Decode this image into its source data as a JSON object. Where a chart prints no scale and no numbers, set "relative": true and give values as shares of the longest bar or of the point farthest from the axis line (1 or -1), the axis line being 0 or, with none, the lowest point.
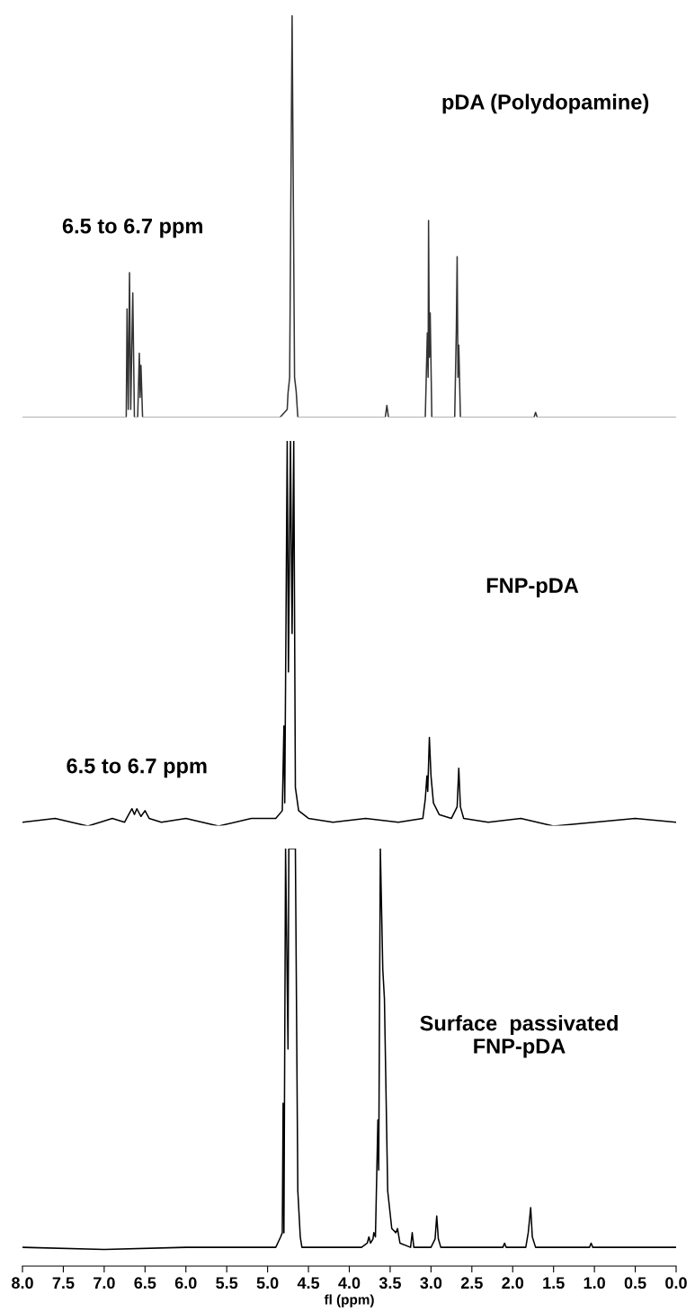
{
  "chart_data": [
    {
      "type": "line",
      "relative": true,
      "xlim": [
        8.0,
        0.0
      ],
      "tick_labels": false,
      "annotations": [
        {
          "text": "6.5 to 6.7 ppm",
          "x": 6.65,
          "y": 0.36
        }
      ],
      "series": [
        {
          "name": "pDA (Polydopamine)",
          "color": "#333333",
          "x": [
            8.0,
            6.76,
            6.73,
            6.72,
            6.705,
            6.69,
            6.675,
            6.65,
            6.63,
            6.59,
            6.57,
            6.56,
            6.55,
            6.53,
            4.85,
            4.76,
            4.75,
            4.73,
            4.7,
            4.67,
            4.65,
            4.63,
            3.56,
            3.54,
            3.52,
            3.07,
            3.045,
            3.035,
            3.03,
            3.02,
            3.01,
            2.99,
            2.71,
            2.69,
            2.68,
            2.67,
            2.66,
            2.64,
            1.74,
            1.72,
            1.7,
            0.0
          ],
          "values": [
            0,
            0,
            0,
            0.27,
            0.02,
            0.36,
            0.02,
            0.31,
            0,
            0,
            0.16,
            0.05,
            0.13,
            0,
            0,
            0.02,
            0.06,
            0.1,
            1,
            0.1,
            0.065,
            0,
            0,
            0.03,
            0,
            0,
            0.21,
            0.1,
            0.49,
            0.15,
            0.26,
            0,
            0,
            0.22,
            0.4,
            0.1,
            0.18,
            0,
            0,
            0.013,
            0,
            0
          ]
        }
      ]
    },
    {
      "type": "line",
      "relative": true,
      "xlim": [
        8.0,
        0.0
      ],
      "tick_labels": false,
      "annotations": [
        {
          "text": "6.5 to 6.7 ppm",
          "x": 6.6,
          "y": 0.035
        }
      ],
      "series": [
        {
          "name": "FNP-pDA",
          "color": "#000000",
          "x": [
            8.0,
            7.6,
            7.2,
            6.9,
            6.75,
            6.7,
            6.66,
            6.63,
            6.6,
            6.55,
            6.5,
            6.45,
            6.3,
            6.0,
            5.6,
            5.2,
            4.9,
            4.82,
            4.8,
            4.79,
            4.76,
            4.745,
            4.72,
            4.7,
            4.68,
            4.66,
            4.62,
            4.5,
            4.2,
            3.8,
            3.4,
            3.1,
            3.07,
            3.05,
            3.04,
            3.02,
            3.0,
            2.97,
            2.9,
            2.75,
            2.68,
            2.66,
            2.64,
            2.6,
            2.3,
            1.9,
            1.5,
            1.0,
            0.5,
            0.0
          ],
          "values": [
            0.01,
            0.02,
            0,
            0.02,
            0.01,
            0.03,
            0.045,
            0.03,
            0.045,
            0.025,
            0.04,
            0.02,
            0.01,
            0.02,
            0,
            0.02,
            0.02,
            0.04,
            0.26,
            0.06,
            1,
            0.4,
            1,
            0.5,
            1,
            0.1,
            0.04,
            0.02,
            0.01,
            0.02,
            0.01,
            0.02,
            0.07,
            0.13,
            0.09,
            0.23,
            0.13,
            0.06,
            0.03,
            0.02,
            0.05,
            0.15,
            0.05,
            0.02,
            0.01,
            0.02,
            0,
            0.01,
            0.02,
            0.01
          ]
        }
      ]
    },
    {
      "type": "line",
      "relative": true,
      "xlim": [
        8.0,
        0.0
      ],
      "tick_labels": "x",
      "xlabel": "fl (ppm)",
      "xticks": [
        {
          "value": 8,
          "label": "8.0"
        },
        7.5,
        {
          "value": 7,
          "label": "7.0"
        },
        6.5,
        {
          "value": 6,
          "label": "6.0"
        },
        5.5,
        {
          "value": 5,
          "label": "5.0"
        },
        4.5,
        {
          "value": 4,
          "label": "4.0"
        },
        3.5,
        {
          "value": 3,
          "label": "3.0"
        },
        2.5,
        {
          "value": 2,
          "label": "2.0"
        },
        1.5,
        {
          "value": 1,
          "label": "1.0"
        },
        0.5,
        {
          "value": 0,
          "label": "0.0"
        }
      ],
      "series": [
        {
          "name": "Surface  passivated\nFNP-pDA",
          "color": "#000000",
          "x": [
            8.0,
            7.0,
            6.0,
            5.0,
            4.9,
            4.84,
            4.82,
            4.81,
            4.8,
            4.78,
            4.75,
            4.74,
            4.7,
            4.66,
            4.63,
            4.6,
            4.58,
            4.2,
            3.85,
            3.78,
            3.76,
            3.74,
            3.71,
            3.7,
            3.68,
            3.65,
            3.64,
            3.62,
            3.59,
            3.57,
            3.53,
            3.48,
            3.43,
            3.41,
            3.38,
            3.25,
            3.23,
            3.21,
            3.0,
            2.95,
            2.93,
            2.91,
            2.88,
            2.5,
            2.12,
            2.1,
            2.08,
            1.84,
            1.81,
            1.78,
            1.76,
            1.72,
            1.2,
            1.06,
            1.04,
            1.02,
            0.5,
            0.0
          ],
          "values": [
            0.045,
            0.04,
            0.045,
            0.045,
            0.045,
            0.07,
            0.08,
            0.39,
            0.08,
            1,
            0.52,
            1,
            1,
            1,
            0.18,
            0.07,
            0.045,
            0.045,
            0.045,
            0.055,
            0.07,
            0.055,
            0.065,
            0.08,
            0.07,
            0.35,
            0.23,
            1,
            0.71,
            0.64,
            0.18,
            0.09,
            0.08,
            0.09,
            0.055,
            0.045,
            0.08,
            0.045,
            0.045,
            0.065,
            0.12,
            0.065,
            0.045,
            0.045,
            0.045,
            0.055,
            0.045,
            0.045,
            0.08,
            0.14,
            0.07,
            0.045,
            0.045,
            0.045,
            0.055,
            0.045,
            0.045,
            0.045
          ]
        }
      ]
    }
  ]
}
